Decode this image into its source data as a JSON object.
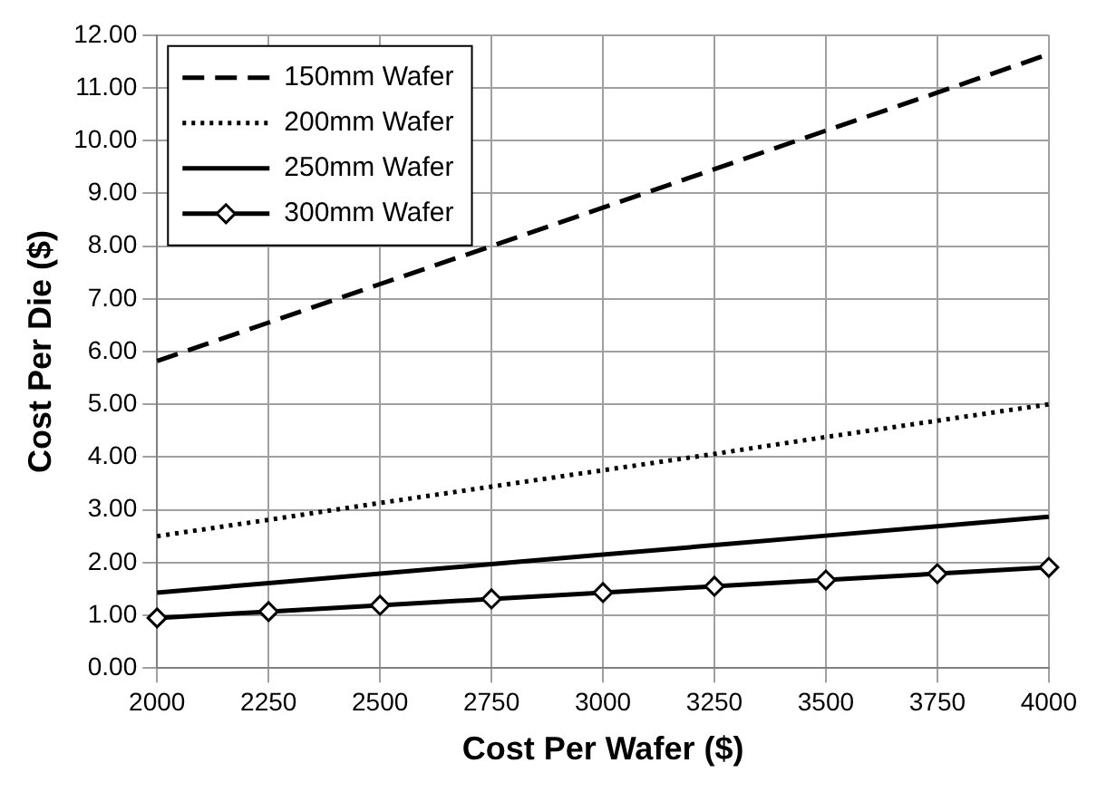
{
  "chart_data": {
    "type": "line",
    "xlabel": "Cost Per Wafer ($)",
    "ylabel": "Cost Per Die ($)",
    "categories": [
      "2000",
      "2250",
      "2500",
      "2750",
      "3000",
      "3250",
      "3500",
      "3750",
      "4000"
    ],
    "series": [
      {
        "name": "150mm Wafer",
        "color": "#000000",
        "line_style": "dashed",
        "marker": "none",
        "values": [
          5.82,
          6.55,
          7.28,
          8.0,
          8.73,
          9.46,
          10.19,
          10.91,
          11.64
        ]
      },
      {
        "name": "200mm Wafer",
        "color": "#000000",
        "line_style": "dotted",
        "marker": "none",
        "values": [
          2.5,
          2.81,
          3.13,
          3.44,
          3.75,
          4.06,
          4.38,
          4.69,
          5.0
        ]
      },
      {
        "name": "250mm Wafer",
        "color": "#000000",
        "line_style": "solid",
        "marker": "none",
        "values": [
          1.43,
          1.61,
          1.79,
          1.97,
          2.15,
          2.33,
          2.51,
          2.69,
          2.87
        ]
      },
      {
        "name": "300mm Wafer",
        "color": "#000000",
        "line_style": "solid",
        "marker": "diamond",
        "values": [
          0.95,
          1.07,
          1.19,
          1.31,
          1.43,
          1.55,
          1.67,
          1.79,
          1.91
        ]
      }
    ],
    "ylim": [
      0,
      12
    ],
    "yticks": [
      {
        "value": 0,
        "label": "0.00"
      },
      {
        "value": 1,
        "label": "1.00"
      },
      {
        "value": 2,
        "label": "2.00"
      },
      {
        "value": 3,
        "label": "3.00"
      },
      {
        "value": 4,
        "label": "4.00"
      },
      {
        "value": 5,
        "label": "5.00"
      },
      {
        "value": 6,
        "label": "6.00"
      },
      {
        "value": 7,
        "label": "7.00"
      },
      {
        "value": 8,
        "label": "8.00"
      },
      {
        "value": 9,
        "label": "9.00"
      },
      {
        "value": 10,
        "label": "10.00"
      },
      {
        "value": 11,
        "label": "11.00"
      },
      {
        "value": 12,
        "label": "12.00"
      }
    ],
    "grid": true,
    "legend": "top left"
  }
}
